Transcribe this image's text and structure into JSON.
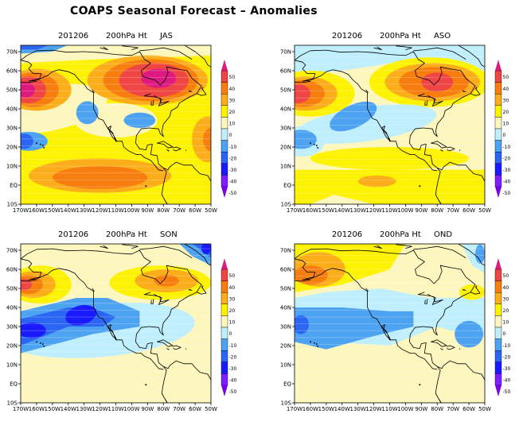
{
  "figure": {
    "title": "COAPS Seasonal Forecast – Anomalies"
  },
  "colors": {
    "levels": [
      {
        "range": "-50 below",
        "hex": "#7a00e6"
      },
      {
        "range": "-50 to -40",
        "hex": "#7f1fff"
      },
      {
        "range": "-40 to -30",
        "hex": "#1a1aff"
      },
      {
        "range": "-30 to -20",
        "hex": "#2b66f2"
      },
      {
        "range": "-20 to -10",
        "hex": "#4da3f2"
      },
      {
        "range": "-10 to 0",
        "hex": "#bfeefc"
      },
      {
        "range": "0 to 10",
        "hex": "#fdf7be"
      },
      {
        "range": "10 to 20",
        "hex": "#fdf200"
      },
      {
        "range": "20 to 30",
        "hex": "#fbad1a"
      },
      {
        "range": "30 to 40",
        "hex": "#f77d0f"
      },
      {
        "range": "40 to 50",
        "hex": "#f04545"
      },
      {
        "range": "50 above",
        "hex": "#de1a80"
      }
    ],
    "coastline": "#000000",
    "frame": "#000000"
  },
  "chart_data": [
    {
      "type": "heatmap",
      "title_parts": [
        "201206",
        "200hPa Ht",
        "JAS"
      ],
      "variable": "200hPa Ht",
      "init": "201206",
      "season": "JAS",
      "x_ticks": [
        "170W",
        "160W",
        "150W",
        "140W",
        "130W",
        "120W",
        "110W",
        "100W",
        "90W",
        "80W",
        "70W",
        "60W",
        "50W"
      ],
      "y_ticks": [
        "10S",
        "EQ",
        "10N",
        "20N",
        "30N",
        "40N",
        "50N",
        "60N",
        "70N"
      ],
      "xlim": [
        -170,
        -50
      ],
      "ylim": [
        -10,
        73
      ],
      "colorbar_ticks": [
        "50",
        "40",
        "30",
        "20",
        "10",
        "0",
        "-10",
        "-20",
        "-30",
        "-40",
        "-50"
      ],
      "features": [
        {
          "region": "North Pacific ~50N 165W",
          "anomaly_max": 50
        },
        {
          "region": "Hudson Bay / Canada ~55N 85W",
          "anomaly_max": 50
        },
        {
          "region": "Central US ~35N 95W",
          "anomaly_min": -10
        },
        {
          "region": "West US ~38N 125W",
          "anomaly_min": -10
        },
        {
          "region": "Hawaii ~22N 165W",
          "anomaly_min": -20
        },
        {
          "region": "Eastern tropical Pacific ~5N 120W",
          "anomaly_max": 30
        },
        {
          "region": "Atlantic ~25N 55W",
          "anomaly_max": 30
        }
      ]
    },
    {
      "type": "heatmap",
      "title_parts": [
        "201206",
        "200hPa Ht",
        "ASO"
      ],
      "variable": "200hPa Ht",
      "init": "201206",
      "season": "ASO",
      "x_ticks": [
        "170W",
        "160W",
        "150W",
        "140W",
        "130W",
        "120W",
        "110W",
        "100W",
        "90W",
        "80W",
        "70W",
        "60W",
        "50W"
      ],
      "y_ticks": [
        "10S",
        "EQ",
        "10N",
        "20N",
        "30N",
        "40N",
        "50N",
        "60N",
        "70N"
      ],
      "xlim": [
        -170,
        -50
      ],
      "ylim": [
        -10,
        73
      ],
      "colorbar_ticks": [
        "50",
        "40",
        "30",
        "20",
        "10",
        "0",
        "-10",
        "-20",
        "-30",
        "-40",
        "-50"
      ],
      "features": [
        {
          "region": "North Pacific ~48N 168W",
          "anomaly_max": 50
        },
        {
          "region": "Hudson Bay / Canada ~55N 80W",
          "anomaly_max": 50
        },
        {
          "region": "NE Pacific ~35N 135W",
          "anomaly_min": -20
        },
        {
          "region": "Hawaii ~25N 165W",
          "anomaly_min": -20
        },
        {
          "region": "Eastern tropical Pacific ~2N 120W",
          "anomaly_max": 30
        }
      ]
    },
    {
      "type": "heatmap",
      "title_parts": [
        "201206",
        "200hPa Ht",
        "SON"
      ],
      "variable": "200hPa Ht",
      "init": "201206",
      "season": "SON",
      "x_ticks": [
        "170W",
        "160W",
        "150W",
        "140W",
        "130W",
        "120W",
        "110W",
        "100W",
        "90W",
        "80W",
        "70W",
        "60W",
        "50W"
      ],
      "y_ticks": [
        "10S",
        "EQ",
        "10N",
        "20N",
        "30N",
        "40N",
        "50N",
        "60N",
        "70N"
      ],
      "xlim": [
        -170,
        -50
      ],
      "ylim": [
        -10,
        73
      ],
      "colorbar_ticks": [
        "50",
        "40",
        "30",
        "20",
        "10",
        "0",
        "-10",
        "-20",
        "-30",
        "-40",
        "-50"
      ],
      "features": [
        {
          "region": "North Pacific ~52N 165W",
          "anomaly_max": 50
        },
        {
          "region": "Canada ~55N 80W",
          "anomaly_max": 40
        },
        {
          "region": "NE Pacific ~35N 130W",
          "anomaly_min": -30
        },
        {
          "region": "Subtropical Pacific ~28N 165W",
          "anomaly_min": -30
        },
        {
          "region": "Arctic ~72N 55W",
          "anomaly_min": -30
        }
      ]
    },
    {
      "type": "heatmap",
      "title_parts": [
        "201206",
        "200hPa Ht",
        "OND"
      ],
      "variable": "200hPa Ht",
      "init": "201206",
      "season": "OND",
      "x_ticks": [
        "170W",
        "160W",
        "150W",
        "140W",
        "130W",
        "120W",
        "110W",
        "100W",
        "90W",
        "80W",
        "70W",
        "60W",
        "50W"
      ],
      "y_ticks": [
        "10S",
        "EQ",
        "10N",
        "20N",
        "30N",
        "40N",
        "50N",
        "60N",
        "70N"
      ],
      "xlim": [
        -170,
        -50
      ],
      "ylim": [
        -10,
        73
      ],
      "colorbar_ticks": [
        "50",
        "40",
        "30",
        "20",
        "10",
        "0",
        "-10",
        "-20",
        "-30",
        "-40",
        "-50"
      ],
      "features": [
        {
          "region": "Alaska ~57N 160W",
          "anomaly_max": 40
        },
        {
          "region": "Labrador ~50N 58W",
          "anomaly_max": 20
        },
        {
          "region": "NE Pacific ~35N 140W",
          "anomaly_min": -30
        },
        {
          "region": "West Atlantic ~27N 60W",
          "anomaly_min": -20
        },
        {
          "region": "Greenland ~70N 52W",
          "anomaly_min": -20
        }
      ]
    }
  ]
}
